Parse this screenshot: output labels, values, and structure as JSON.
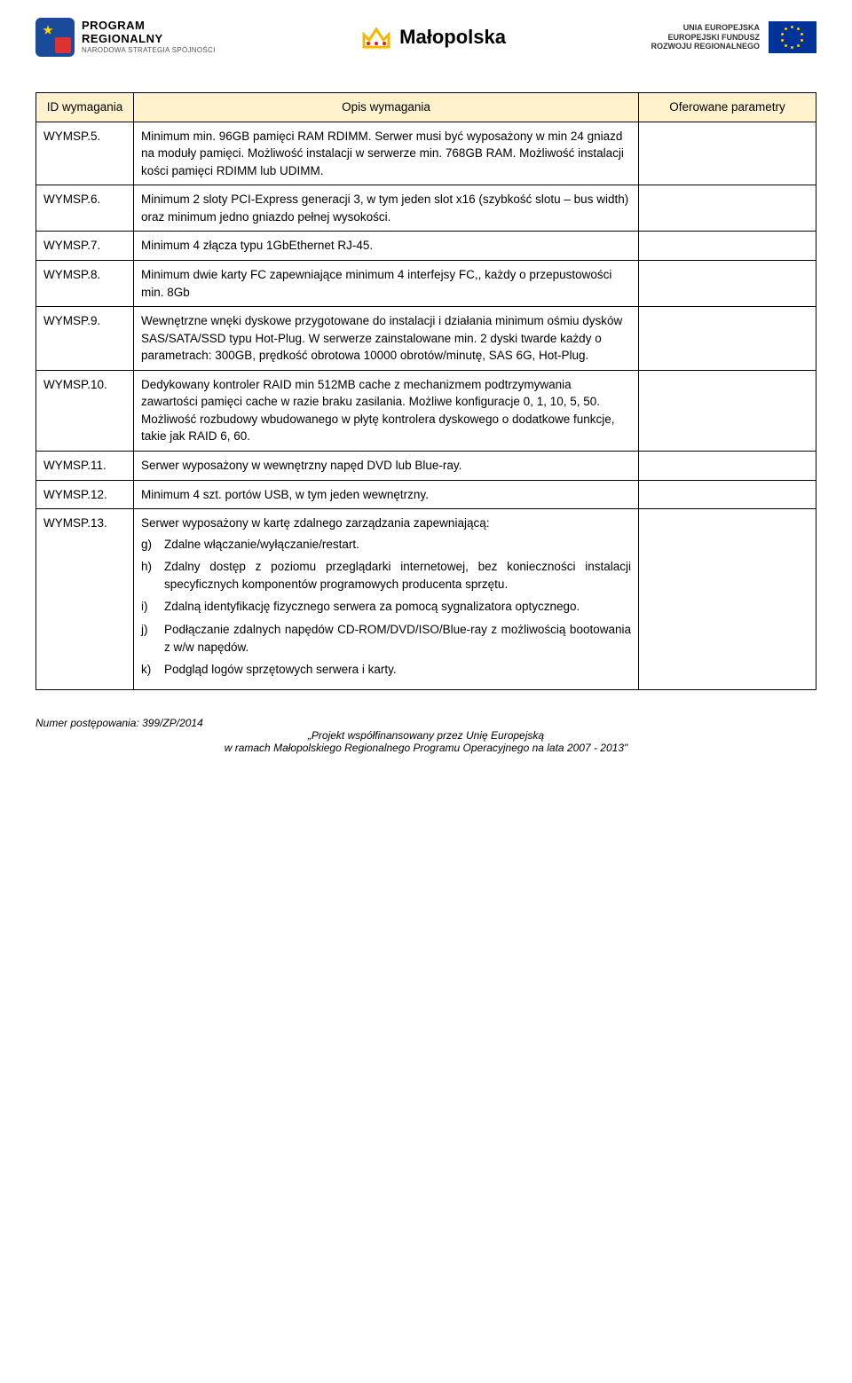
{
  "header": {
    "left": {
      "line1": "PROGRAM",
      "line2": "REGIONALNY",
      "line3": "NARODOWA STRATEGIA SPÓJNOŚCI"
    },
    "center": {
      "text": "Małopolska"
    },
    "right": {
      "line1": "UNIA EUROPEJSKA",
      "line2": "EUROPEJSKI FUNDUSZ",
      "line3": "ROZWOJU REGIONALNEGO"
    }
  },
  "table": {
    "headers": {
      "id": "ID wymagania",
      "desc": "Opis wymagania",
      "offer": "Oferowane parametry"
    },
    "rows": [
      {
        "id": "WYMSP.5.",
        "desc": "Minimum min. 96GB pamięci RAM RDIMM. Serwer musi być wyposażony w min 24 gniazd na moduły pamięci. Możliwość instalacji w serwerze min. 768GB RAM. Możliwość instalacji kości pamięci RDIMM lub UDIMM."
      },
      {
        "id": "WYMSP.6.",
        "desc": "Minimum 2 sloty PCI-Express generacji 3, w tym jeden slot x16 (szybkość slotu – bus width) oraz minimum jedno gniazdo pełnej wysokości."
      },
      {
        "id": "WYMSP.7.",
        "desc": "Minimum 4 złącza typu 1GbEthernet RJ-45."
      },
      {
        "id": "WYMSP.8.",
        "desc": "Minimum dwie karty FC zapewniające minimum 4 interfejsy FC,, każdy o przepustowości min. 8Gb"
      },
      {
        "id": "WYMSP.9.",
        "desc": "Wewnętrzne wnęki dyskowe przygotowane do instalacji i działania minimum ośmiu dysków SAS/SATA/SSD typu Hot-Plug. W serwerze zainstalowane min. 2 dyski twarde każdy o parametrach: 300GB, prędkość obrotowa 10000 obrotów/minutę, SAS 6G, Hot-Plug."
      },
      {
        "id": "WYMSP.10.",
        "desc": "Dedykowany kontroler RAID min 512MB cache z mechanizmem podtrzymywania zawartości pamięci cache w razie braku zasilania. Możliwe konfiguracje 0, 1, 10, 5, 50. Możliwość rozbudowy wbudowanego w płytę kontrolera dyskowego o dodatkowe funkcje, takie jak RAID 6, 60."
      },
      {
        "id": "WYMSP.11.",
        "desc": "Serwer wyposażony w wewnętrzny napęd DVD lub Blue-ray."
      },
      {
        "id": "WYMSP.12.",
        "desc": "Minimum 4 szt. portów USB, w tym jeden wewnętrzny."
      },
      {
        "id": "WYMSP.13.",
        "desc_intro": "Serwer wyposażony w kartę zdalnego zarządzania zapewniającą:",
        "subitems": [
          {
            "marker": "g)",
            "text": "Zdalne włączanie/wyłączanie/restart."
          },
          {
            "marker": "h)",
            "text": "Zdalny dostęp z poziomu przeglądarki internetowej, bez konieczności instalacji specyficznych komponentów programowych producenta sprzętu."
          },
          {
            "marker": "i)",
            "text": "Zdalną identyfikację fizycznego serwera za pomocą sygnalizatora optycznego."
          },
          {
            "marker": "j)",
            "text": "Podłączanie zdalnych napędów CD-ROM/DVD/ISO/Blue-ray z możliwością bootowania z w/w napędów."
          },
          {
            "marker": "k)",
            "text": "Podgląd logów sprzętowych serwera i karty."
          }
        ]
      }
    ]
  },
  "footer": {
    "line1": "Numer postępowania: 399/ZP/2014",
    "line2": "„Projekt współfinansowany przez Unię Europejską",
    "line3": "w ramach Małopolskiego Regionalnego Programu Operacyjnego na lata 2007 - 2013\""
  }
}
